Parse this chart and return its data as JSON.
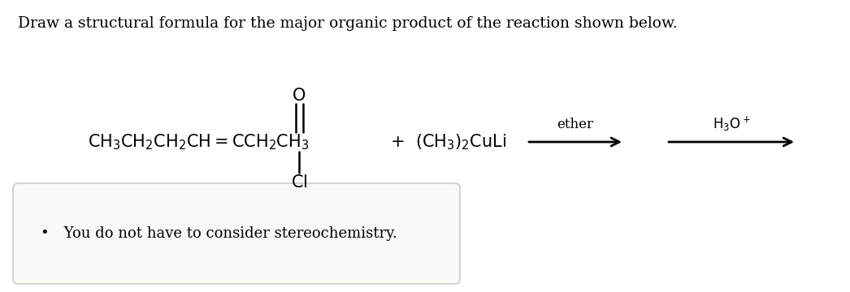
{
  "title": "Draw a structural formula for the major organic product of the reaction shown below.",
  "title_fontsize": 13.5,
  "background_color": "#ffffff",
  "formula_fontsize": 15,
  "arrow_label_fontsize": 12,
  "note_fontsize": 13,
  "note_text": "You do not have to consider stereochemistry.",
  "arrow1_label": "ether",
  "arrow2_label": "H$_3$O$^+$",
  "note_box_facecolor": "#f8f8f4",
  "note_box_edgecolor": "#cccccc"
}
